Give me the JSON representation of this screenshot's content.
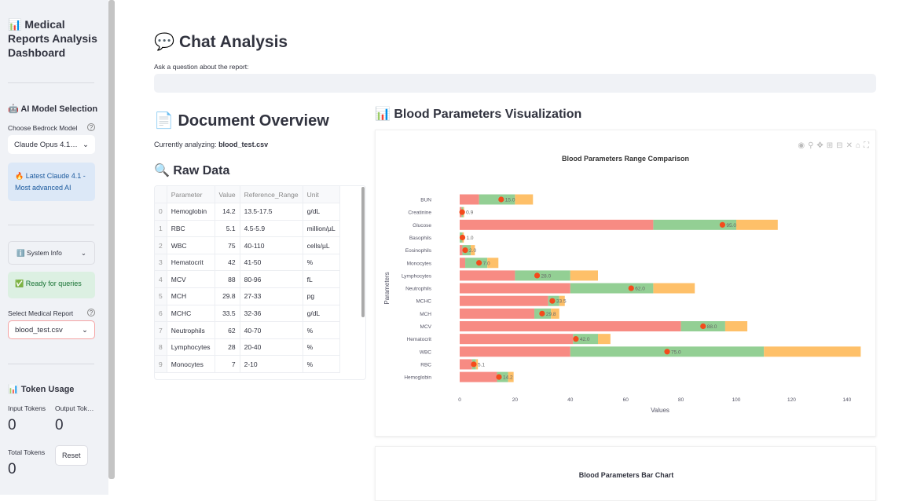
{
  "sidebar": {
    "title": "📊 Medical Reports Analysis Dashboard",
    "model_section": "🤖 AI Model Selection",
    "model_label": "Choose Bedrock Model",
    "model_value": "Claude Opus 4.1…",
    "model_info": "🔥 Latest Claude 4.1 - Most advanced AI",
    "system_info": "ℹ️ System Info",
    "status": "✅ Ready for queries",
    "report_label": "Select Medical Report",
    "report_value": "blood_test.csv",
    "token_title": "📊 Token Usage",
    "input_tokens_label": "Input Tokens",
    "input_tokens": "0",
    "output_tokens_label": "Output Tok…",
    "output_tokens": "0",
    "total_tokens_label": "Total Tokens",
    "total_tokens": "0",
    "reset": "Reset"
  },
  "main": {
    "chat_title": "💬 Chat Analysis",
    "chat_prompt": "Ask a question about the report:",
    "chat_value": "",
    "doc_title": "📄 Document Overview",
    "analyzing_label": "Currently analyzing:",
    "analyzing_file": "blood_test.csv",
    "raw_title": "🔍 Raw Data",
    "viz_title": "📊 Blood Parameters Visualization",
    "chart2_title": "Blood Parameters Bar Chart"
  },
  "table": {
    "headers": [
      "",
      "Parameter",
      "Value",
      "Reference_Range",
      "Unit"
    ],
    "rows": [
      [
        "0",
        "Hemoglobin",
        "14.2",
        "13.5-17.5",
        "g/dL"
      ],
      [
        "1",
        "RBC",
        "5.1",
        "4.5-5.9",
        "million/µL"
      ],
      [
        "2",
        "WBC",
        "75",
        "40-110",
        "cells/µL"
      ],
      [
        "3",
        "Hematocrit",
        "42",
        "41-50",
        "%"
      ],
      [
        "4",
        "MCV",
        "88",
        "80-96",
        "fL"
      ],
      [
        "5",
        "MCH",
        "29.8",
        "27-33",
        "pg"
      ],
      [
        "6",
        "MCHC",
        "33.5",
        "32-36",
        "g/dL"
      ],
      [
        "7",
        "Neutrophils",
        "62",
        "40-70",
        "%"
      ],
      [
        "8",
        "Lymphocytes",
        "28",
        "20-40",
        "%"
      ],
      [
        "9",
        "Monocytes",
        "7",
        "2-10",
        "%"
      ]
    ]
  },
  "chart_data": {
    "type": "bar",
    "title": "Blood Parameters Range Comparison",
    "xlabel": "Values",
    "ylabel": "Parameters",
    "orientation": "horizontal",
    "stacked": true,
    "xlim": [
      0,
      145
    ],
    "xticks": [
      0,
      20,
      40,
      60,
      80,
      100,
      120,
      140
    ],
    "categories": [
      "Hemoglobin",
      "RBC",
      "WBC",
      "Hematocrit",
      "MCV",
      "MCH",
      "MCHC",
      "Neutrophils",
      "Lymphocytes",
      "Monocytes",
      "Eosinophils",
      "Basophils",
      "Glucose",
      "Creatinine",
      "BUN"
    ],
    "ref_low": [
      13.5,
      4.5,
      40,
      41,
      80,
      27,
      32,
      40,
      20,
      2,
      1,
      0,
      70,
      0.7,
      7
    ],
    "ref_high": [
      17.5,
      5.9,
      110,
      50,
      96,
      33,
      36,
      70,
      40,
      10,
      4,
      1,
      100,
      1.3,
      20
    ],
    "values": [
      14.2,
      5.1,
      75,
      42,
      88,
      29.8,
      33.5,
      62,
      28,
      7,
      2,
      1,
      95,
      0.9,
      15
    ],
    "value_labels": [
      "14.2",
      "5.1",
      "75.0",
      "42.0",
      "88.0",
      "29.8",
      "33.5",
      "62.0",
      "28.0",
      "7.0",
      "2.0",
      "1.0",
      "95.0",
      "0.9",
      "15.0"
    ],
    "colors": {
      "low": "#f78b83",
      "normal": "#93cf94",
      "high": "#fec069",
      "marker": "#f44b1c"
    },
    "grid": false
  },
  "toolbar": [
    "camera-icon",
    "zoom-icon",
    "pan-icon",
    "zoom-in-icon",
    "zoom-out-icon",
    "autoscale-icon",
    "home-icon",
    "fullscreen-icon"
  ]
}
